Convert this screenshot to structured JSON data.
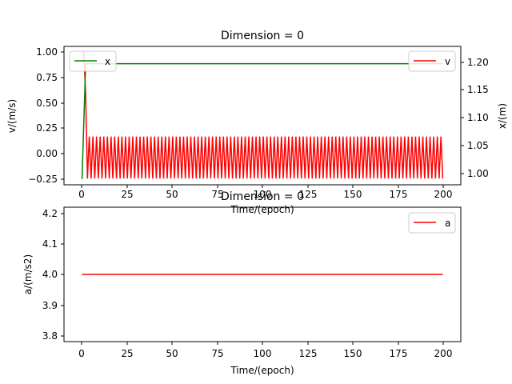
{
  "chart_data": [
    {
      "type": "line",
      "title": "Dimension = 0",
      "xlabel": "Time/(epoch)",
      "ylabel": "v/(m/s)",
      "ylabel_right": "x/(m)",
      "xlim": [
        -9.95,
        208.95
      ],
      "ylim": [
        -0.26,
        1.06
      ],
      "ylim_right": [
        0.99,
        1.23
      ],
      "xticks": [
        "0",
        "25",
        "50",
        "75",
        "100",
        "125",
        "150",
        "175",
        "200"
      ],
      "yticks": [
        "−0.25",
        "0.00",
        "0.25",
        "0.50",
        "0.75",
        "1.00"
      ],
      "yticks_right": [
        "1.00",
        "1.05",
        "1.10",
        "1.15",
        "1.20"
      ],
      "grid": false,
      "series": [
        {
          "name": "v",
          "axis": "left",
          "color": "#ff0000",
          "legend_position": "upper right",
          "description": "v starts at 1.0 at epoch 0, drops to -0.2 at epoch 3, then oscillates every epoch between 0.2 (even epochs) and -0.2 (odd epochs) up to epoch 199",
          "x_range": [
            0,
            199
          ],
          "values_start": [
            1.0,
            1.0,
            0.6,
            -0.2
          ],
          "oscillation": {
            "from_epoch": 4,
            "even_value": 0.2,
            "odd_value": -0.2
          }
        },
        {
          "name": "x",
          "axis": "right",
          "color": "#008000",
          "legend_position": "upper left",
          "x": [
            0,
            1,
            2,
            199
          ],
          "values": [
            1.0,
            1.1,
            1.2,
            1.2
          ]
        }
      ]
    },
    {
      "type": "line",
      "title": "Dimension = 0",
      "xlabel": "Time/(epoch)",
      "ylabel": "a/(m/s2)",
      "xlim": [
        -9.95,
        208.95
      ],
      "ylim": [
        3.78,
        4.22
      ],
      "xticks": [
        "0",
        "25",
        "50",
        "75",
        "100",
        "125",
        "150",
        "175",
        "200"
      ],
      "yticks": [
        "3.8",
        "3.9",
        "4.0",
        "4.1",
        "4.2"
      ],
      "grid": false,
      "series": [
        {
          "name": "a",
          "color": "#ff0000",
          "legend_position": "upper right",
          "x": [
            0,
            199
          ],
          "values": [
            4.0,
            4.0
          ]
        }
      ]
    }
  ]
}
